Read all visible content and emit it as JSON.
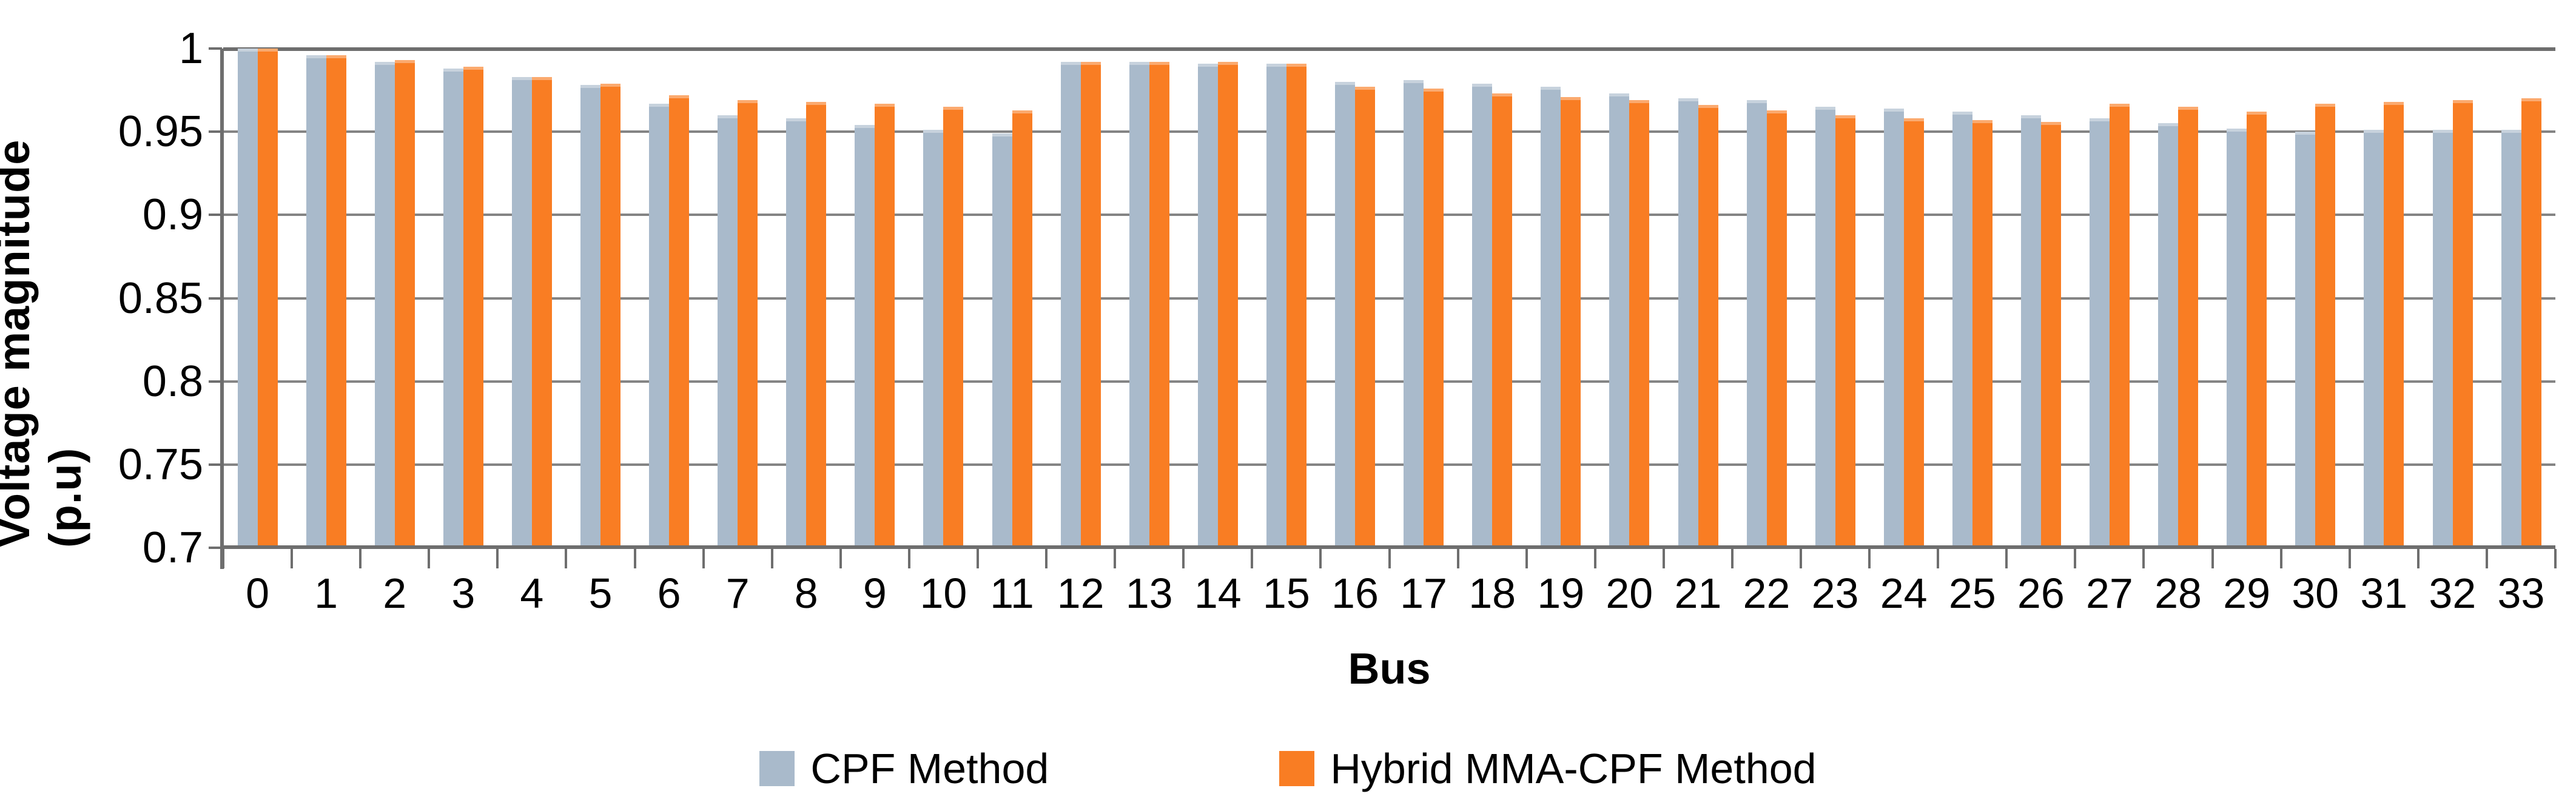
{
  "chart_data": {
    "type": "bar",
    "title": "",
    "xlabel": "Bus",
    "ylabel": "Voltage magnitude (p.u)",
    "ylim": [
      0.7,
      1.0
    ],
    "ytick_step": 0.05,
    "yticks": [
      1,
      0.95,
      0.9,
      0.85,
      0.8,
      0.75,
      0.7
    ],
    "ytick_labels": [
      "1",
      "0.95",
      "0.9",
      "0.85",
      "0.8",
      "0.75",
      "0.7"
    ],
    "grid": true,
    "legend_position": "bottom",
    "categories": [
      "0",
      "1",
      "2",
      "3",
      "4",
      "5",
      "6",
      "7",
      "8",
      "9",
      "10",
      "11",
      "12",
      "13",
      "14",
      "15",
      "16",
      "17",
      "18",
      "19",
      "20",
      "21",
      "22",
      "23",
      "24",
      "25",
      "26",
      "27",
      "28",
      "29",
      "30",
      "31",
      "32",
      "33"
    ],
    "series": [
      {
        "name": "CPF Method",
        "color": "#A9BACB",
        "values": [
          1.0,
          0.996,
          0.992,
          0.988,
          0.983,
          0.978,
          0.967,
          0.96,
          0.958,
          0.954,
          0.951,
          0.949,
          0.992,
          0.992,
          0.991,
          0.991,
          0.98,
          0.981,
          0.979,
          0.977,
          0.973,
          0.97,
          0.969,
          0.965,
          0.964,
          0.962,
          0.96,
          0.958,
          0.955,
          0.952,
          0.95,
          0.951,
          0.951,
          0.951
        ]
      },
      {
        "name": "Hybrid MMA-CPF Method",
        "color": "#F97D23",
        "values": [
          1.0,
          0.996,
          0.993,
          0.989,
          0.983,
          0.979,
          0.972,
          0.969,
          0.968,
          0.967,
          0.965,
          0.963,
          0.992,
          0.992,
          0.992,
          0.991,
          0.977,
          0.976,
          0.973,
          0.971,
          0.969,
          0.966,
          0.963,
          0.96,
          0.958,
          0.957,
          0.956,
          0.967,
          0.965,
          0.962,
          0.967,
          0.968,
          0.969,
          0.97
        ]
      }
    ]
  },
  "styles": {
    "background": "#FFFFFF",
    "gridline_color": "#848484",
    "axis_color": "#6E6E6E",
    "text_color": "#000000"
  }
}
